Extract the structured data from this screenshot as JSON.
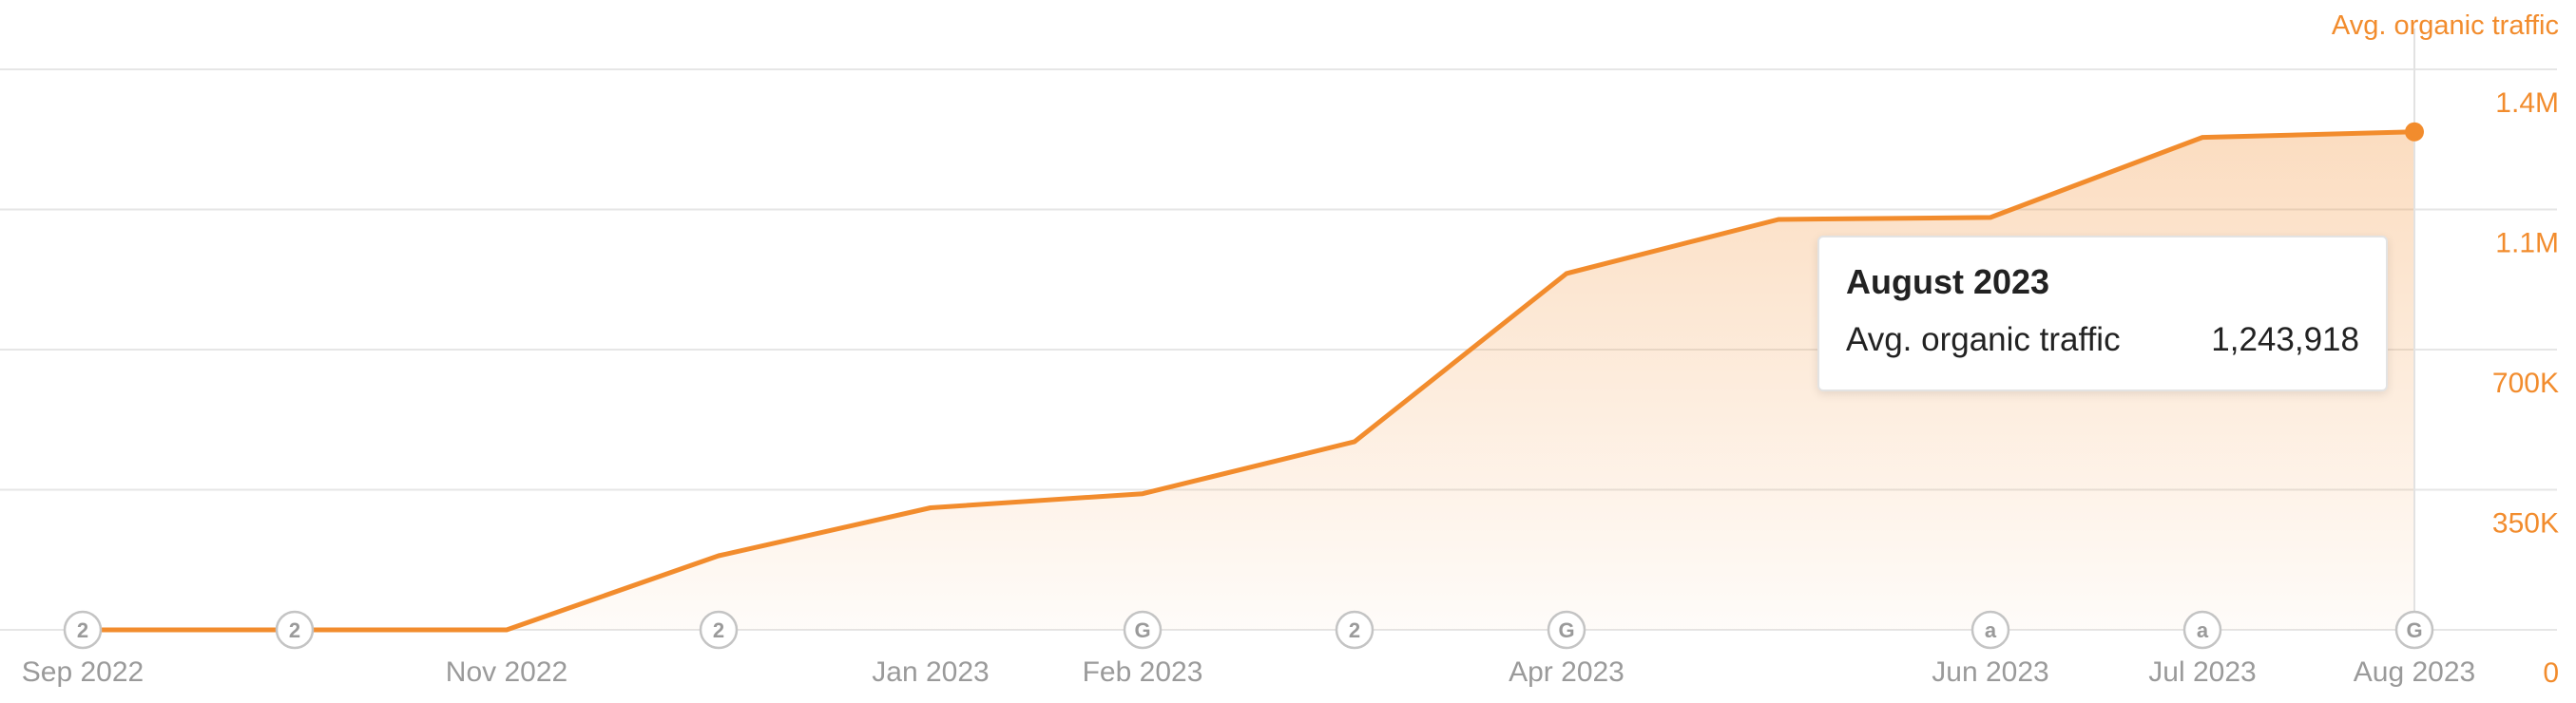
{
  "colors": {
    "accent": "#f28c2d",
    "grid": "#e6e6e6",
    "axis_text": "#9a9a9a",
    "tooltip_text": "#222222"
  },
  "chart_data": {
    "type": "area",
    "y_axis_title": "Avg. organic traffic",
    "y_axis_position": "right",
    "ylim": [
      0,
      1400000
    ],
    "y_ticks": [
      0,
      350000,
      700000,
      1050000,
      1400000
    ],
    "y_tick_labels": [
      "0",
      "350K",
      "700K",
      "1.1M",
      "1.4M"
    ],
    "grid": true,
    "x": [
      "Sep 2022",
      "Oct 2022",
      "Nov 2022",
      "Dec 2022",
      "Jan 2023",
      "Feb 2023",
      "Mar 2023",
      "Apr 2023",
      "May 2023",
      "Jun 2023",
      "Jul 2023",
      "Aug 2023"
    ],
    "x_tick_labels": [
      "Sep 2022",
      "",
      "Nov 2022",
      "",
      "Jan 2023",
      "Feb 2023",
      "",
      "Apr 2023",
      "",
      "Jun 2023",
      "Jul 2023",
      "Aug 2023"
    ],
    "series": [
      {
        "name": "Avg. organic traffic",
        "values": [
          0,
          0,
          0,
          185000,
          305000,
          340000,
          470000,
          890000,
          1025000,
          1030000,
          1230000,
          1243918
        ]
      }
    ],
    "event_markers": [
      {
        "x": "Sep 2022",
        "symbol": "2"
      },
      {
        "x": "Oct 2022",
        "symbol": "2"
      },
      {
        "x": "Dec 2022",
        "symbol": "2"
      },
      {
        "x": "Feb 2023",
        "symbol": "G"
      },
      {
        "x": "Mar 2023",
        "symbol": "2"
      },
      {
        "x": "Apr 2023",
        "symbol": "G"
      },
      {
        "x": "Jun 2023",
        "symbol": "a"
      },
      {
        "x": "Jul 2023",
        "symbol": "a"
      },
      {
        "x": "Aug 2023",
        "symbol": "G"
      }
    ],
    "highlighted_point": "Aug 2023"
  },
  "tooltip": {
    "title": "August 2023",
    "label": "Avg. organic traffic",
    "value": "1,243,918"
  }
}
